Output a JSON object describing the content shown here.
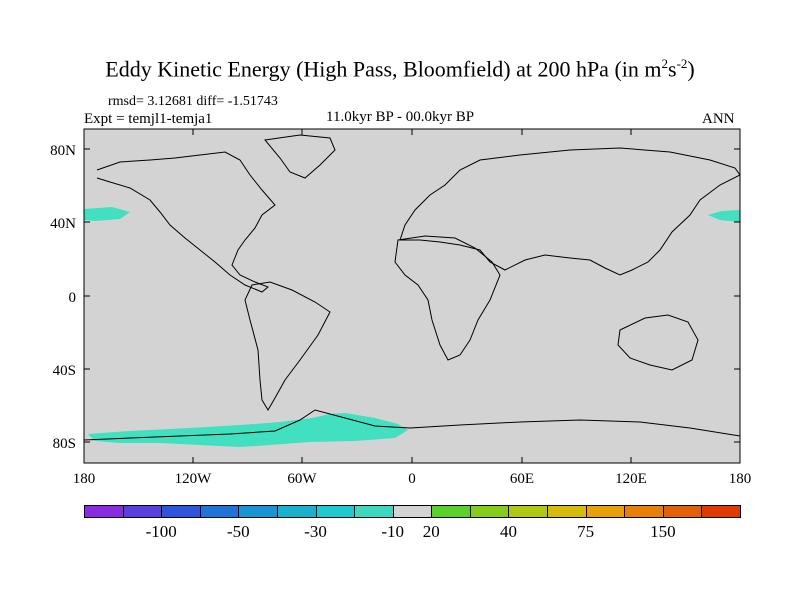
{
  "title": {
    "text": "Eddy Kinetic Energy (High Pass, Bloomfield) at 200 hPa (in m",
    "sup1": "2",
    "mid": "s",
    "sup2": "-2",
    "end": ")"
  },
  "stats": "rmsd= 3.12681 diff= -1.51743",
  "experiment": "Expt = temjl1-temja1",
  "period": "11.0kyr BP - 00.0kyr BP",
  "season": "ANN",
  "map": {
    "lon_labels": [
      "180",
      "120W",
      "60W",
      "0",
      "60E",
      "120E",
      "180"
    ],
    "lat_labels": [
      "80N",
      "40N",
      "0",
      "40S",
      "80S"
    ],
    "ocean_color": "#d3d3d3",
    "anomaly_color": "#40e0c0",
    "coast_color": "#000000"
  },
  "colorbar": {
    "colors": [
      "#8a2be2",
      "#5a3fe0",
      "#2f55dc",
      "#1e74d8",
      "#1a94d4",
      "#1ab0d0",
      "#20c8d0",
      "#3ed8c0",
      "#d3d3d3",
      "#5ad02a",
      "#86cc1a",
      "#b0c810",
      "#d6bc08",
      "#e8a006",
      "#e88006",
      "#e46004",
      "#e03a02"
    ],
    "labels": [
      "-100",
      "-50",
      "-30",
      "-10",
      "20",
      "40",
      "75",
      "150"
    ]
  }
}
